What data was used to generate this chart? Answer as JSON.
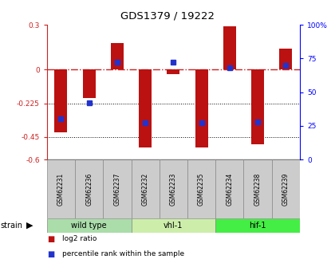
{
  "title": "GDS1379 / 19222",
  "samples": [
    "GSM62231",
    "GSM62236",
    "GSM62237",
    "GSM62232",
    "GSM62233",
    "GSM62235",
    "GSM62234",
    "GSM62238",
    "GSM62239"
  ],
  "log2_ratios": [
    -0.42,
    -0.19,
    0.18,
    -0.52,
    -0.03,
    -0.52,
    0.29,
    -0.5,
    0.14
  ],
  "percentile_ranks": [
    30,
    42,
    72,
    27,
    72,
    27,
    68,
    28,
    70
  ],
  "groups": [
    {
      "label": "wild type",
      "start": 0,
      "end": 3,
      "color": "#aaddaa"
    },
    {
      "label": "vhl-1",
      "start": 3,
      "end": 6,
      "color": "#cceeaa"
    },
    {
      "label": "hif-1",
      "start": 6,
      "end": 9,
      "color": "#44ee44"
    }
  ],
  "ylim_left": [
    -0.6,
    0.3
  ],
  "ylim_right": [
    0,
    100
  ],
  "bar_color": "#bb1111",
  "dot_color": "#2233cc",
  "dotted_lines": [
    -0.225,
    -0.45
  ],
  "background_color": "#ffffff",
  "legend_items": [
    {
      "label": "log2 ratio",
      "color": "#bb1111"
    },
    {
      "label": "percentile rank within the sample",
      "color": "#2233cc"
    }
  ]
}
